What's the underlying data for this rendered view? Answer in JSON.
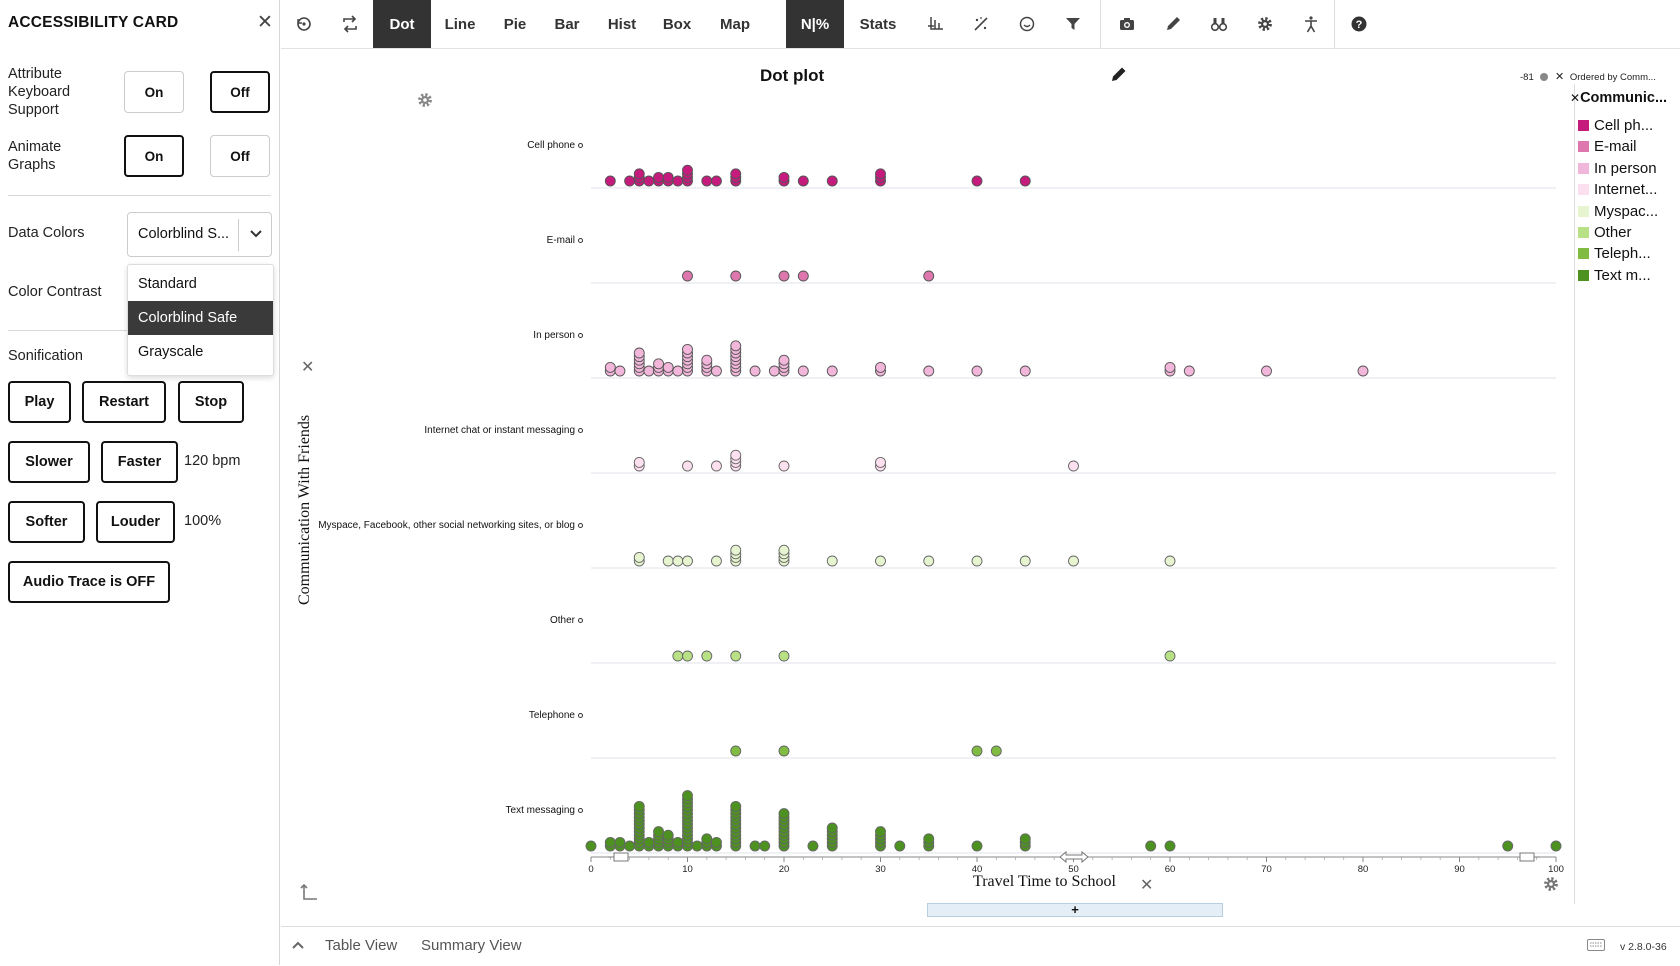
{
  "card": {
    "title": "ACCESSIBILITY CARD",
    "close_icon": "close-icon",
    "attribute_keyboard": {
      "label_l1": "Attribute",
      "label_l2": "Keyboard",
      "label_l3": "Support",
      "on": "On",
      "off": "Off",
      "selected": "Off"
    },
    "animate_graphs": {
      "label_l1": "Animate",
      "label_l2": "Graphs",
      "on": "On",
      "off": "Off",
      "selected": "On"
    },
    "data_colors": {
      "label": "Data Colors",
      "value": "Colorblind S...",
      "options": [
        "Standard",
        "Colorblind Safe",
        "Grayscale"
      ],
      "selected": "Colorblind Safe"
    },
    "color_contrast": {
      "label": "Color Contrast"
    },
    "sonification": {
      "label": "Sonification",
      "play": "Play",
      "restart": "Restart",
      "stop": "Stop",
      "slower": "Slower",
      "faster": "Faster",
      "tempo": "120 bpm",
      "softer": "Softer",
      "louder": "Louder",
      "volume": "100%",
      "audio_trace": "Audio Trace is OFF"
    }
  },
  "toolbar": {
    "buttons": [
      "Dot",
      "Line",
      "Pie",
      "Bar",
      "Hist",
      "Box",
      "Map",
      "N|%",
      "Stats"
    ],
    "active": [
      "Dot",
      "N|%"
    ],
    "icons": [
      "undo-icon",
      "swap-icon",
      "axis-icon",
      "wand-icon",
      "target-icon",
      "filter-icon",
      "camera-icon",
      "pencil-icon",
      "binoculars-icon",
      "gear-icon",
      "accessibility-icon",
      "help-icon"
    ]
  },
  "graph": {
    "title": "Dot plot",
    "y_label": "Communication With Friends",
    "x_label": "Travel Time to School",
    "add_label": "+",
    "legend": {
      "note_value": "-81",
      "ordered_by": "Ordered by Comm...",
      "attribute": "Communic...",
      "items": [
        {
          "label": "Cell ph...",
          "color": "#c51b7d"
        },
        {
          "label": "E-mail",
          "color": "#de77ae"
        },
        {
          "label": "In person",
          "color": "#f1b6da"
        },
        {
          "label": "Internet...",
          "color": "#fde0ef"
        },
        {
          "label": "Myspac...",
          "color": "#e6f5d0"
        },
        {
          "label": "Other",
          "color": "#b8e186"
        },
        {
          "label": "Teleph...",
          "color": "#7fbc41"
        },
        {
          "label": "Text m...",
          "color": "#4d9221"
        }
      ]
    }
  },
  "chart_data": {
    "type": "scatter",
    "title": "Dot plot",
    "xlabel": "Travel Time to School",
    "ylabel": "Communication With Friends",
    "xlim": [
      0,
      100
    ],
    "x_ticks": [
      0,
      10,
      20,
      30,
      40,
      50,
      60,
      70,
      80,
      90,
      100
    ],
    "categories": [
      "Cell phone",
      "E-mail",
      "In person",
      "Internet chat or instant messaging",
      "Myspace, Facebook, other social networking sites, or blog",
      "Other",
      "Telephone",
      "Text messaging"
    ],
    "colors": [
      "#c51b7d",
      "#de77ae",
      "#f1b6da",
      "#fde0ef",
      "#e6f5d0",
      "#b8e186",
      "#7fbc41",
      "#4d9221"
    ],
    "series": [
      {
        "name": "Cell phone",
        "points": [
          [
            2,
            1
          ],
          [
            4,
            1
          ],
          [
            5,
            3
          ],
          [
            6,
            1
          ],
          [
            7,
            2
          ],
          [
            8,
            2
          ],
          [
            9,
            1
          ],
          [
            10,
            4
          ],
          [
            12,
            1
          ],
          [
            13,
            1
          ],
          [
            15,
            3
          ],
          [
            20,
            2
          ],
          [
            22,
            1
          ],
          [
            25,
            1
          ],
          [
            30,
            3
          ],
          [
            40,
            1
          ],
          [
            45,
            1
          ]
        ]
      },
      {
        "name": "E-mail",
        "points": [
          [
            10,
            1
          ],
          [
            15,
            1
          ],
          [
            20,
            1
          ],
          [
            22,
            1
          ],
          [
            35,
            1
          ]
        ]
      },
      {
        "name": "In person",
        "points": [
          [
            2,
            2
          ],
          [
            3,
            1
          ],
          [
            5,
            6
          ],
          [
            6,
            1
          ],
          [
            7,
            3
          ],
          [
            8,
            2
          ],
          [
            9,
            1
          ],
          [
            10,
            7
          ],
          [
            12,
            4
          ],
          [
            13,
            1
          ],
          [
            15,
            8
          ],
          [
            17,
            1
          ],
          [
            19,
            1
          ],
          [
            20,
            4
          ],
          [
            22,
            1
          ],
          [
            25,
            1
          ],
          [
            30,
            2
          ],
          [
            35,
            1
          ],
          [
            40,
            1
          ],
          [
            45,
            1
          ],
          [
            60,
            2
          ],
          [
            62,
            1
          ],
          [
            70,
            1
          ],
          [
            80,
            1
          ]
        ]
      },
      {
        "name": "Internet chat or instant messaging",
        "points": [
          [
            5,
            2
          ],
          [
            10,
            1
          ],
          [
            13,
            1
          ],
          [
            15,
            4
          ],
          [
            20,
            1
          ],
          [
            30,
            2
          ],
          [
            50,
            1
          ]
        ]
      },
      {
        "name": "Myspace, Facebook, other social networking sites, or blog",
        "points": [
          [
            5,
            2
          ],
          [
            8,
            1
          ],
          [
            9,
            1
          ],
          [
            10,
            1
          ],
          [
            13,
            1
          ],
          [
            15,
            4
          ],
          [
            20,
            4
          ],
          [
            25,
            1
          ],
          [
            30,
            1
          ],
          [
            35,
            1
          ],
          [
            40,
            1
          ],
          [
            45,
            1
          ],
          [
            50,
            1
          ],
          [
            60,
            1
          ]
        ]
      },
      {
        "name": "Other",
        "points": [
          [
            9,
            1
          ],
          [
            10,
            1
          ],
          [
            12,
            1
          ],
          [
            15,
            1
          ],
          [
            20,
            1
          ],
          [
            60,
            1
          ]
        ]
      },
      {
        "name": "Telephone",
        "points": [
          [
            15,
            1
          ],
          [
            20,
            1
          ],
          [
            40,
            1
          ],
          [
            42,
            1
          ]
        ]
      },
      {
        "name": "Text messaging",
        "points": [
          [
            0,
            1
          ],
          [
            2,
            2
          ],
          [
            3,
            2
          ],
          [
            4,
            1
          ],
          [
            5,
            12
          ],
          [
            6,
            2
          ],
          [
            7,
            5
          ],
          [
            8,
            4
          ],
          [
            9,
            2
          ],
          [
            10,
            15
          ],
          [
            11,
            1
          ],
          [
            12,
            3
          ],
          [
            13,
            2
          ],
          [
            15,
            12
          ],
          [
            17,
            1
          ],
          [
            18,
            1
          ],
          [
            20,
            10
          ],
          [
            23,
            1
          ],
          [
            25,
            6
          ],
          [
            30,
            5
          ],
          [
            32,
            1
          ],
          [
            35,
            3
          ],
          [
            40,
            1
          ],
          [
            45,
            3
          ],
          [
            58,
            1
          ],
          [
            60,
            1
          ],
          [
            95,
            1
          ],
          [
            100,
            1
          ]
        ]
      }
    ]
  },
  "bottom": {
    "table_view": "Table View",
    "summary_view": "Summary View",
    "version": "v 2.8.0-36"
  }
}
